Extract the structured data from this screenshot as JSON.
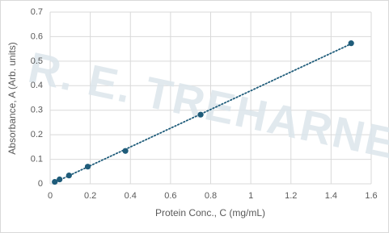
{
  "chart_data": {
    "type": "scatter",
    "watermark": "R. E. TREHARNE",
    "x_label": "Protein Conc., C (mg/mL)",
    "y_label": "Absorbance, A (Arb. units)",
    "series": [
      {
        "name": "Absorbance",
        "color": "#1f5c7a",
        "x": [
          0.023,
          0.047,
          0.094,
          0.1875,
          0.375,
          0.75,
          1.5
        ],
        "values": [
          0.008,
          0.018,
          0.034,
          0.07,
          0.134,
          0.282,
          0.573
        ]
      }
    ],
    "trendline": "linear",
    "xlim": [
      0,
      1.6
    ],
    "xticks": [
      0,
      0.2,
      0.4,
      0.6,
      0.8,
      1,
      1.2,
      1.4,
      1.6
    ],
    "ylim": [
      0,
      0.7
    ],
    "yticks": [
      0,
      0.1,
      0.2,
      0.3,
      0.4,
      0.5,
      0.6,
      0.7
    ],
    "grid": true
  }
}
